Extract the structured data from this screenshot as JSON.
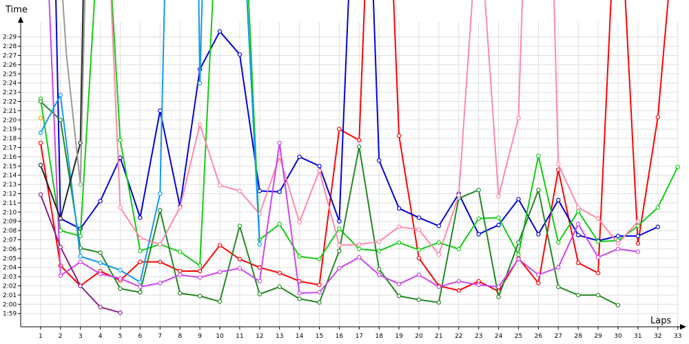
{
  "chart_data": {
    "type": "line",
    "xlabel": "Laps",
    "ylabel": "Time",
    "xlim": [
      0,
      33
    ],
    "ylim": [
      "1:58",
      "2:31"
    ],
    "y_unit": "min:sec",
    "x_ticks": [
      1,
      2,
      3,
      4,
      5,
      6,
      7,
      8,
      9,
      10,
      11,
      12,
      13,
      14,
      15,
      16,
      17,
      18,
      19,
      20,
      21,
      22,
      23,
      24,
      25,
      26,
      27,
      28,
      29,
      30,
      31,
      32,
      33
    ],
    "y_ticks": [
      "1:59",
      "2:00",
      "2:01",
      "2:02",
      "2:03",
      "2:04",
      "2:05",
      "2:06",
      "2:07",
      "2:08",
      "2:09",
      "2:10",
      "2:11",
      "2:12",
      "2:13",
      "2:14",
      "2:15",
      "2:16",
      "2:17",
      "2:18",
      "2:19",
      "2:20",
      "2:21",
      "2:22",
      "2:23",
      "2:24",
      "2:25",
      "2:26",
      "2:27",
      "2:28",
      "2:29"
    ],
    "grid": true,
    "series": [
      {
        "color": "#ff0000",
        "points": [
          [
            1,
            "2:17.5"
          ],
          [
            2,
            "2:04.2"
          ],
          [
            3,
            "2:02.0"
          ],
          [
            4,
            "2:03.6"
          ],
          [
            5,
            "2:02.6"
          ],
          [
            6,
            "2:04.6"
          ],
          [
            7,
            "2:04.6"
          ],
          [
            8,
            "2:03.6"
          ],
          [
            9,
            "2:03.6"
          ],
          [
            10,
            "2:06.4"
          ],
          [
            11,
            "2:04.9"
          ],
          [
            12,
            "2:04.0"
          ],
          [
            13,
            "2:03.4"
          ],
          [
            14,
            "2:02.5"
          ],
          [
            15,
            "2:02.1"
          ],
          [
            16,
            "2:19.0"
          ],
          [
            17,
            "2:17.8"
          ],
          [
            17.4,
            "2:40"
          ],
          [
            18.6,
            "2:40"
          ],
          [
            19,
            "2:18.3"
          ],
          [
            20,
            "2:05.0"
          ],
          [
            21,
            "2:02.0"
          ],
          [
            22,
            "2:01.5"
          ],
          [
            23,
            "2:02.5"
          ],
          [
            24,
            "2:01.4"
          ],
          [
            25,
            "2:05.0"
          ],
          [
            26,
            "2:02.3"
          ],
          [
            27,
            "2:14.6"
          ],
          [
            28,
            "2:04.5"
          ],
          [
            29,
            "2:03.4"
          ],
          [
            29.8,
            "2:40"
          ],
          [
            30.2,
            "2:40"
          ],
          [
            31,
            "2:06.6"
          ],
          [
            32,
            "2:20.3"
          ],
          [
            32.8,
            "2:40"
          ]
        ]
      },
      {
        "color": "#0000dd",
        "points": [
          [
            1.7,
            "2:40"
          ],
          [
            2,
            "2:09.3"
          ],
          [
            3,
            "2:08.2"
          ],
          [
            4,
            "2:11.2"
          ],
          [
            5,
            "2:15.9"
          ],
          [
            6,
            "2:09.4"
          ],
          [
            7,
            "2:21.0"
          ],
          [
            8,
            "2:10.6"
          ],
          [
            9,
            "2:25.5"
          ],
          [
            10,
            "2:29.6"
          ],
          [
            11,
            "2:27.1"
          ],
          [
            12,
            "2:12.3"
          ],
          [
            13,
            "2:12.2"
          ],
          [
            14,
            "2:16.0"
          ],
          [
            15,
            "2:15.0"
          ],
          [
            16,
            "2:09.0"
          ],
          [
            16.6,
            "2:40"
          ],
          [
            17.6,
            "2:40"
          ],
          [
            18,
            "2:15.6"
          ],
          [
            19,
            "2:10.4"
          ],
          [
            20,
            "2:09.4"
          ],
          [
            21,
            "2:08.5"
          ],
          [
            22,
            "2:12.0"
          ],
          [
            23,
            "2:07.6"
          ],
          [
            24,
            "2:08.6"
          ],
          [
            25,
            "2:11.4"
          ],
          [
            26,
            "2:07.6"
          ],
          [
            27,
            "2:11.3"
          ],
          [
            28,
            "2:07.5"
          ],
          [
            29,
            "2:06.9"
          ],
          [
            30,
            "2:07.4"
          ],
          [
            31,
            "2:07.4"
          ],
          [
            32,
            "2:08.4"
          ]
        ]
      },
      {
        "color": "#11cc11",
        "points": [
          [
            1,
            "2:22.3"
          ],
          [
            2,
            "2:08.0"
          ],
          [
            3,
            "2:07.4"
          ],
          [
            3.9,
            "2:40"
          ],
          [
            4.4,
            "2:40"
          ],
          [
            5,
            "2:17.8"
          ],
          [
            6,
            "2:05.8"
          ],
          [
            7,
            "2:06.5"
          ],
          [
            8,
            "2:05.7"
          ],
          [
            9,
            "2:04.2"
          ],
          [
            9.8,
            "2:40"
          ],
          [
            11.3,
            "2:40"
          ],
          [
            12,
            "2:07.0"
          ],
          [
            13,
            "2:08.7"
          ],
          [
            14,
            "2:05.2"
          ],
          [
            15,
            "2:04.9"
          ],
          [
            16,
            "2:08.2"
          ],
          [
            17,
            "2:06.0"
          ],
          [
            18,
            "2:05.8"
          ],
          [
            19,
            "2:06.7"
          ],
          [
            20,
            "2:05.9"
          ],
          [
            21,
            "2:06.7"
          ],
          [
            22,
            "2:06.0"
          ],
          [
            23,
            "2:09.3"
          ],
          [
            24,
            "2:09.4"
          ],
          [
            25,
            "2:05.4"
          ],
          [
            26,
            "2:16.1"
          ],
          [
            27,
            "2:06.7"
          ],
          [
            28,
            "2:10.1"
          ],
          [
            29,
            "2:06.8"
          ],
          [
            30,
            "2:06.9"
          ],
          [
            31,
            "2:08.5"
          ],
          [
            32,
            "2:10.5"
          ],
          [
            33,
            "2:14.9"
          ]
        ]
      },
      {
        "color": "#228822",
        "points": [
          [
            1,
            "2:22.0"
          ],
          [
            2,
            "2:20.0"
          ],
          [
            3,
            "2:06.1"
          ],
          [
            4,
            "2:05.6"
          ],
          [
            5,
            "2:01.7"
          ],
          [
            6,
            "2:01.3"
          ],
          [
            7,
            "2:10.2"
          ],
          [
            8,
            "2:01.2"
          ],
          [
            9,
            "2:00.9"
          ],
          [
            10,
            "2:00.3"
          ],
          [
            11,
            "2:08.5"
          ],
          [
            12,
            "2:01.1"
          ],
          [
            13,
            "2:01.9"
          ],
          [
            14,
            "2:00.6"
          ],
          [
            15,
            "2:00.2"
          ],
          [
            16,
            "2:05.8"
          ],
          [
            17,
            "2:17.1"
          ],
          [
            18,
            "2:03.8"
          ],
          [
            19,
            "2:00.9"
          ],
          [
            20,
            "2:00.5"
          ],
          [
            21,
            "2:00.2"
          ],
          [
            22,
            "2:11.5"
          ],
          [
            23,
            "2:12.4"
          ],
          [
            24,
            "2:00.8"
          ],
          [
            25,
            "2:06.7"
          ],
          [
            26,
            "2:12.4"
          ],
          [
            27,
            "2:01.9"
          ],
          [
            28,
            "2:01.0"
          ],
          [
            29,
            "2:01.0"
          ],
          [
            30,
            "1:59.9"
          ]
        ]
      },
      {
        "color": "#ff88aa",
        "points": [
          [
            4.4,
            "2:40"
          ],
          [
            5,
            "2:10.5"
          ],
          [
            6,
            "2:07.2"
          ],
          [
            7,
            "2:06.5"
          ],
          [
            8,
            "2:10.5"
          ],
          [
            9,
            "2:19.5"
          ],
          [
            10,
            "2:12.9"
          ],
          [
            11,
            "2:12.3"
          ],
          [
            12,
            "2:09.8"
          ],
          [
            13,
            "2:16.0"
          ],
          [
            14,
            "2:08.9"
          ],
          [
            15,
            "2:14.5"
          ],
          [
            16,
            "2:06.4"
          ],
          [
            17,
            "2:06.5"
          ],
          [
            18,
            "2:06.8"
          ],
          [
            19,
            "2:08.4"
          ],
          [
            20,
            "2:08.1"
          ],
          [
            21,
            "2:05.4"
          ],
          [
            22,
            "2:11.8"
          ],
          [
            22.9,
            "2:40"
          ],
          [
            23.1,
            "2:40"
          ],
          [
            24,
            "2:11.7"
          ],
          [
            25,
            "2:20.2"
          ],
          [
            25.3,
            "2:40"
          ],
          [
            26.7,
            "2:40"
          ],
          [
            27,
            "2:15.2"
          ],
          [
            28,
            "2:10.5"
          ],
          [
            29,
            "2:09.3"
          ],
          [
            30,
            "2:06.6"
          ],
          [
            31,
            "2:09.0"
          ]
        ]
      },
      {
        "color": "#cc44ee",
        "points": [
          [
            1.3,
            "2:40"
          ],
          [
            2,
            "2:03.1"
          ],
          [
            3,
            "2:04.6"
          ],
          [
            4,
            "2:03.3"
          ],
          [
            5,
            "2:02.8"
          ],
          [
            6,
            "2:01.9"
          ],
          [
            7,
            "2:02.3"
          ],
          [
            8,
            "2:03.2"
          ],
          [
            9,
            "2:02.9"
          ],
          [
            10,
            "2:03.5"
          ],
          [
            11,
            "2:03.9"
          ],
          [
            12,
            "2:02.5"
          ],
          [
            13,
            "2:17.5"
          ],
          [
            14,
            "2:01.2"
          ],
          [
            15,
            "2:01.3"
          ],
          [
            16,
            "2:03.9"
          ],
          [
            17,
            "2:05.1"
          ],
          [
            18,
            "2:03.2"
          ],
          [
            19,
            "2:02.2"
          ],
          [
            20,
            "2:03.2"
          ],
          [
            21,
            "2:01.9"
          ],
          [
            22,
            "2:02.5"
          ],
          [
            23,
            "2:02.1"
          ],
          [
            24,
            "2:01.9"
          ],
          [
            25,
            "2:04.9"
          ],
          [
            26,
            "2:03.2"
          ],
          [
            27,
            "2:04.0"
          ],
          [
            28,
            "2:08.7"
          ],
          [
            29,
            "2:05.1"
          ],
          [
            30,
            "2:06.0"
          ],
          [
            31,
            "2:05.7"
          ]
        ]
      },
      {
        "color": "#1199ee",
        "points": [
          [
            1,
            "2:18.6"
          ],
          [
            2,
            "2:22.7"
          ],
          [
            3,
            "2:05.2"
          ],
          [
            4,
            "2:04.5"
          ],
          [
            5,
            "2:03.7"
          ],
          [
            6,
            "2:02.4"
          ],
          [
            7,
            "2:12.0"
          ],
          [
            7.3,
            "2:40"
          ],
          [
            8.9,
            "2:40"
          ],
          [
            9,
            "2:24.0"
          ],
          [
            9.2,
            "2:40"
          ],
          [
            11.2,
            "2:40"
          ],
          [
            12,
            "2:06.5"
          ]
        ]
      },
      {
        "color": "#882288",
        "points": [
          [
            1,
            "2:11.9"
          ],
          [
            2,
            "2:06.2"
          ],
          [
            3,
            "2:02.0"
          ],
          [
            4,
            "1:59.7"
          ],
          [
            5,
            "1:59.1"
          ]
        ]
      },
      {
        "color": "#222222",
        "points": [
          [
            1,
            "2:15.1"
          ],
          [
            2,
            "2:09.3"
          ],
          [
            3,
            "2:17.5"
          ],
          [
            3.2,
            "2:40"
          ]
        ]
      },
      {
        "color": "#999999",
        "points": [
          [
            1.9,
            "2:40"
          ],
          [
            2.3,
            "2:27.0"
          ],
          [
            3,
            "2:13.0"
          ],
          [
            3.3,
            "2:40"
          ]
        ]
      },
      {
        "color": "#ddaa00",
        "points": [
          [
            1,
            "2:20.2"
          ]
        ]
      }
    ]
  }
}
